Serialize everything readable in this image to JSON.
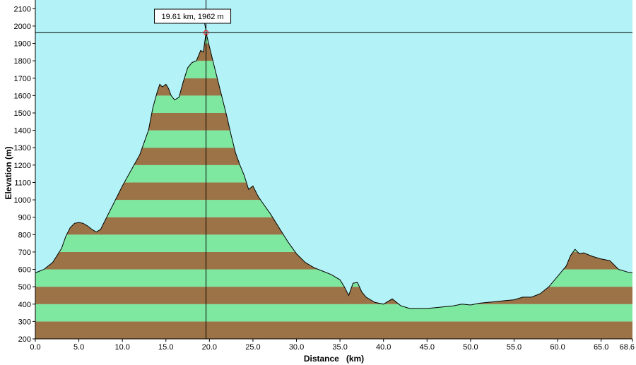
{
  "chart_data": {
    "type": "area",
    "xlabel": "Distance   (km)",
    "ylabel": "Elevation (m)",
    "xlim": [
      0,
      68.6
    ],
    "ylim": [
      200,
      2150
    ],
    "x_ticks": [
      "0.0",
      "5.0",
      "10.0",
      "15.0",
      "20.0",
      "25.0",
      "30.0",
      "35.0",
      "40.0",
      "45.0",
      "50.0",
      "55.0",
      "60.0",
      "65.0",
      "68.6"
    ],
    "y_ticks": [
      "200",
      "300",
      "400",
      "500",
      "600",
      "700",
      "800",
      "900",
      "1000",
      "1100",
      "1200",
      "1300",
      "1400",
      "1500",
      "1600",
      "1700",
      "1800",
      "1900",
      "2000",
      "2100"
    ],
    "band_height_m": 100,
    "cursor": {
      "x": 19.61,
      "y": 1962,
      "label": "19.61 km, 1962 m"
    },
    "series": [
      {
        "points": [
          [
            0.0,
            580
          ],
          [
            1.0,
            600
          ],
          [
            2.0,
            640
          ],
          [
            3.0,
            720
          ],
          [
            3.5,
            790
          ],
          [
            4.0,
            840
          ],
          [
            4.5,
            865
          ],
          [
            5.0,
            870
          ],
          [
            5.5,
            865
          ],
          [
            6.0,
            850
          ],
          [
            6.5,
            830
          ],
          [
            7.0,
            815
          ],
          [
            7.5,
            830
          ],
          [
            8.0,
            880
          ],
          [
            9.0,
            980
          ],
          [
            10.0,
            1080
          ],
          [
            11.0,
            1170
          ],
          [
            12.0,
            1260
          ],
          [
            13.0,
            1400
          ],
          [
            13.5,
            1530
          ],
          [
            14.0,
            1620
          ],
          [
            14.3,
            1665
          ],
          [
            14.6,
            1650
          ],
          [
            15.0,
            1665
          ],
          [
            15.3,
            1640
          ],
          [
            15.6,
            1600
          ],
          [
            16.0,
            1575
          ],
          [
            16.5,
            1590
          ],
          [
            17.0,
            1680
          ],
          [
            17.5,
            1760
          ],
          [
            18.0,
            1790
          ],
          [
            18.5,
            1800
          ],
          [
            19.0,
            1860
          ],
          [
            19.3,
            1850
          ],
          [
            19.61,
            1962
          ],
          [
            20.0,
            1880
          ],
          [
            20.5,
            1780
          ],
          [
            21.0,
            1680
          ],
          [
            21.5,
            1580
          ],
          [
            22.0,
            1480
          ],
          [
            22.5,
            1370
          ],
          [
            23.0,
            1270
          ],
          [
            23.5,
            1200
          ],
          [
            24.0,
            1140
          ],
          [
            24.5,
            1060
          ],
          [
            25.0,
            1080
          ],
          [
            25.3,
            1050
          ],
          [
            25.6,
            1020
          ],
          [
            26.0,
            990
          ],
          [
            27.0,
            920
          ],
          [
            28.0,
            840
          ],
          [
            29.0,
            760
          ],
          [
            30.0,
            690
          ],
          [
            31.0,
            640
          ],
          [
            32.0,
            610
          ],
          [
            33.0,
            590
          ],
          [
            34.0,
            570
          ],
          [
            35.0,
            540
          ],
          [
            35.5,
            500
          ],
          [
            36.0,
            450
          ],
          [
            36.5,
            520
          ],
          [
            37.0,
            525
          ],
          [
            37.5,
            470
          ],
          [
            38.0,
            440
          ],
          [
            39.0,
            410
          ],
          [
            40.0,
            400
          ],
          [
            41.0,
            430
          ],
          [
            41.5,
            410
          ],
          [
            42.0,
            390
          ],
          [
            43.0,
            375
          ],
          [
            44.0,
            375
          ],
          [
            45.0,
            375
          ],
          [
            46.0,
            380
          ],
          [
            47.0,
            385
          ],
          [
            48.0,
            390
          ],
          [
            49.0,
            400
          ],
          [
            50.0,
            395
          ],
          [
            51.0,
            405
          ],
          [
            52.0,
            410
          ],
          [
            53.0,
            415
          ],
          [
            54.0,
            420
          ],
          [
            55.0,
            425
          ],
          [
            56.0,
            440
          ],
          [
            57.0,
            440
          ],
          [
            58.0,
            460
          ],
          [
            59.0,
            500
          ],
          [
            60.0,
            560
          ],
          [
            61.0,
            620
          ],
          [
            61.5,
            680
          ],
          [
            62.0,
            715
          ],
          [
            62.5,
            690
          ],
          [
            63.0,
            695
          ],
          [
            64.0,
            675
          ],
          [
            65.0,
            660
          ],
          [
            66.0,
            650
          ],
          [
            67.0,
            600
          ],
          [
            68.0,
            585
          ],
          [
            68.6,
            580
          ]
        ]
      }
    ]
  },
  "colors": {
    "sky": "#b3f2f6",
    "band_light": "#7fe8a0",
    "band_dark": "#9b7346",
    "outline": "#000000",
    "axis": "#000000",
    "cursor": "#ff0000"
  }
}
